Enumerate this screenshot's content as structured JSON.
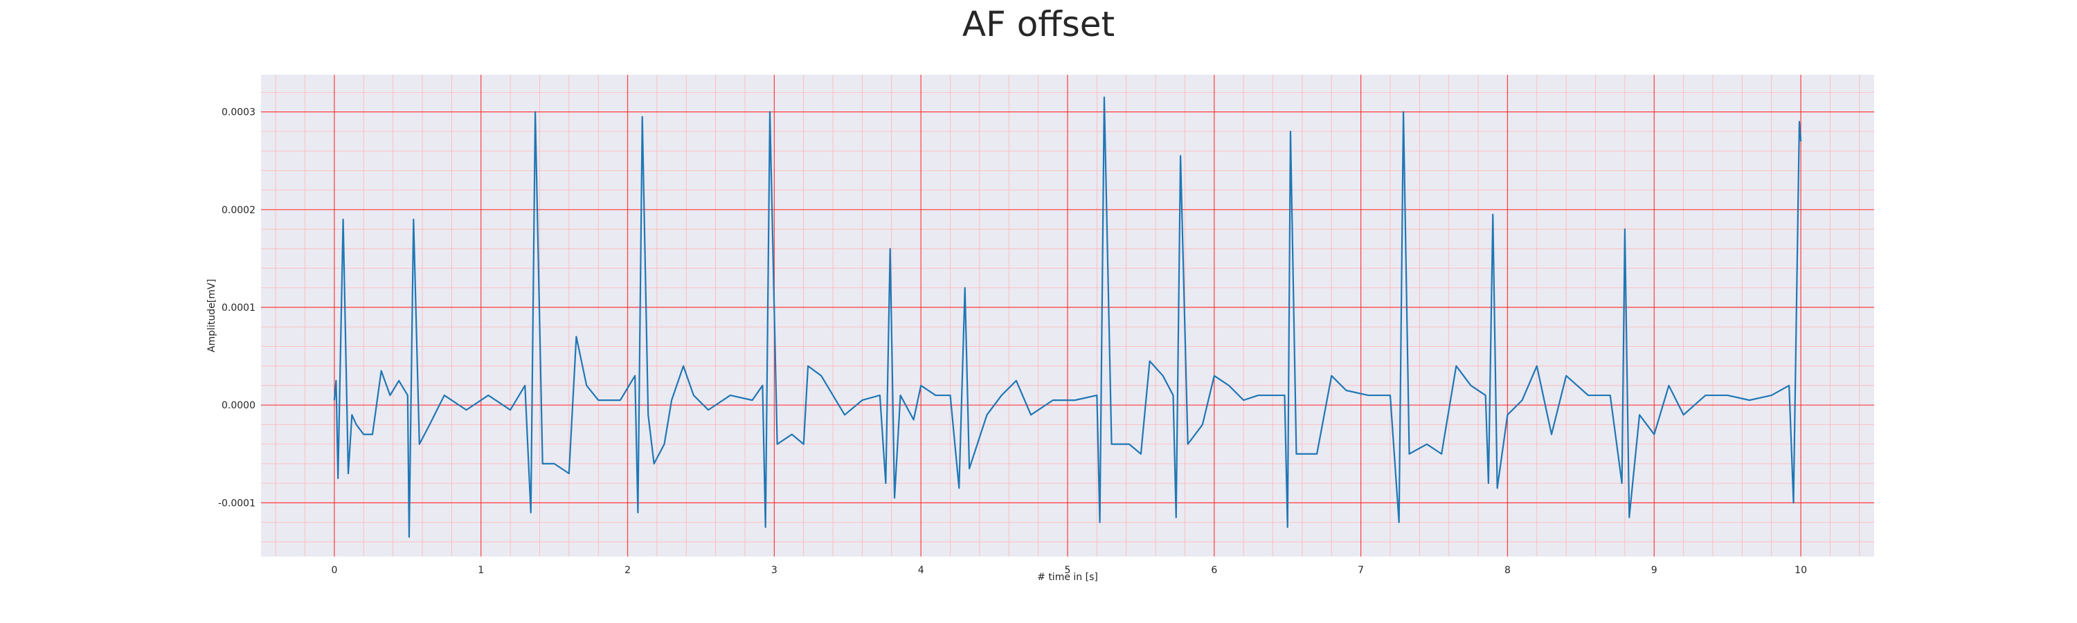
{
  "chart_data": {
    "type": "line",
    "title": "AF offset",
    "xlabel": "# time in [s]",
    "ylabel": "Amplitude[mV]",
    "xlim": [
      -0.5,
      10.5
    ],
    "ylim": [
      -0.000155,
      0.000338
    ],
    "x_ticks": [
      0,
      1,
      2,
      3,
      4,
      5,
      6,
      7,
      8,
      9,
      10
    ],
    "x_tick_labels": [
      "0",
      "1",
      "2",
      "3",
      "4",
      "5",
      "6",
      "7",
      "8",
      "9",
      "10"
    ],
    "y_ticks": [
      -0.0001,
      0,
      0.0001,
      0.0002,
      0.0003
    ],
    "y_tick_labels": [
      "-0.0001",
      "0.0000",
      "0.0001",
      "0.0002",
      "0.0003"
    ],
    "grid": true,
    "grid_color": "#ff3b3b",
    "minor_grid_color": "#ffb6b6",
    "background_color": "#eaeaf2",
    "series": [
      {
        "color": "#1f77b4",
        "points": [
          [
            0.0,
            5e-06
          ],
          [
            0.012,
            2.5e-05
          ],
          [
            0.025,
            -7.5e-05
          ],
          [
            0.06,
            0.00019
          ],
          [
            0.095,
            -7e-05
          ],
          [
            0.12,
            -1e-05
          ],
          [
            0.15,
            -2e-05
          ],
          [
            0.2,
            -3e-05
          ],
          [
            0.26,
            -3e-05
          ],
          [
            0.32,
            3.5e-05
          ],
          [
            0.38,
            1e-05
          ],
          [
            0.44,
            2.5e-05
          ],
          [
            0.5,
            1e-05
          ],
          [
            0.51,
            -0.000135
          ],
          [
            0.54,
            0.00019
          ],
          [
            0.58,
            -4e-05
          ],
          [
            0.65,
            -2e-05
          ],
          [
            0.75,
            1e-05
          ],
          [
            0.9,
            -5e-06
          ],
          [
            1.05,
            1e-05
          ],
          [
            1.2,
            -5e-06
          ],
          [
            1.3,
            2e-05
          ],
          [
            1.34,
            -0.00011
          ],
          [
            1.37,
            0.0003
          ],
          [
            1.42,
            -6e-05
          ],
          [
            1.5,
            -6e-05
          ],
          [
            1.6,
            -7e-05
          ],
          [
            1.65,
            7e-05
          ],
          [
            1.72,
            2e-05
          ],
          [
            1.8,
            5e-06
          ],
          [
            1.95,
            5e-06
          ],
          [
            2.05,
            3e-05
          ],
          [
            2.07,
            -0.00011
          ],
          [
            2.1,
            0.000295
          ],
          [
            2.14,
            -1e-05
          ],
          [
            2.18,
            -6e-05
          ],
          [
            2.25,
            -4e-05
          ],
          [
            2.3,
            5e-06
          ],
          [
            2.38,
            4e-05
          ],
          [
            2.45,
            1e-05
          ],
          [
            2.55,
            -5e-06
          ],
          [
            2.7,
            1e-05
          ],
          [
            2.85,
            5e-06
          ],
          [
            2.92,
            2e-05
          ],
          [
            2.94,
            -0.000125
          ],
          [
            2.97,
            0.0003
          ],
          [
            3.02,
            -4e-05
          ],
          [
            3.12,
            -3e-05
          ],
          [
            3.2,
            -4e-05
          ],
          [
            3.23,
            4e-05
          ],
          [
            3.32,
            3e-05
          ],
          [
            3.4,
            1e-05
          ],
          [
            3.48,
            -1e-05
          ],
          [
            3.6,
            5e-06
          ],
          [
            3.72,
            1e-05
          ],
          [
            3.76,
            -8e-05
          ],
          [
            3.79,
            0.00016
          ],
          [
            3.82,
            -9.5e-05
          ],
          [
            3.86,
            1e-05
          ],
          [
            3.95,
            -1.5e-05
          ],
          [
            4.0,
            2e-05
          ],
          [
            4.1,
            1e-05
          ],
          [
            4.2,
            1e-05
          ],
          [
            4.26,
            -8.5e-05
          ],
          [
            4.3,
            0.00012
          ],
          [
            4.33,
            -6.5e-05
          ],
          [
            4.45,
            -1e-05
          ],
          [
            4.55,
            1e-05
          ],
          [
            4.65,
            2.5e-05
          ],
          [
            4.75,
            -1e-05
          ],
          [
            4.9,
            5e-06
          ],
          [
            5.05,
            5e-06
          ],
          [
            5.2,
            1e-05
          ],
          [
            5.22,
            -0.00012
          ],
          [
            5.25,
            0.000315
          ],
          [
            5.3,
            -4e-05
          ],
          [
            5.42,
            -4e-05
          ],
          [
            5.5,
            -5e-05
          ],
          [
            5.56,
            4.5e-05
          ],
          [
            5.65,
            3e-05
          ],
          [
            5.72,
            1e-05
          ],
          [
            5.74,
            -0.000115
          ],
          [
            5.77,
            0.000255
          ],
          [
            5.82,
            -4e-05
          ],
          [
            5.92,
            -2e-05
          ],
          [
            6.0,
            3e-05
          ],
          [
            6.1,
            2e-05
          ],
          [
            6.2,
            5e-06
          ],
          [
            6.3,
            1e-05
          ],
          [
            6.48,
            1e-05
          ],
          [
            6.5,
            -0.000125
          ],
          [
            6.52,
            0.00028
          ],
          [
            6.56,
            -5e-05
          ],
          [
            6.7,
            -5e-05
          ],
          [
            6.8,
            3e-05
          ],
          [
            6.9,
            1.5e-05
          ],
          [
            7.05,
            1e-05
          ],
          [
            7.2,
            1e-05
          ],
          [
            7.26,
            -0.00012
          ],
          [
            7.29,
            0.0003
          ],
          [
            7.33,
            -5e-05
          ],
          [
            7.45,
            -4e-05
          ],
          [
            7.55,
            -5e-05
          ],
          [
            7.65,
            4e-05
          ],
          [
            7.75,
            2e-05
          ],
          [
            7.85,
            1e-05
          ],
          [
            7.87,
            -8e-05
          ],
          [
            7.9,
            0.000195
          ],
          [
            7.93,
            -8.5e-05
          ],
          [
            8.0,
            -1e-05
          ],
          [
            8.1,
            5e-06
          ],
          [
            8.2,
            4e-05
          ],
          [
            8.3,
            -3e-05
          ],
          [
            8.4,
            3e-05
          ],
          [
            8.55,
            1e-05
          ],
          [
            8.7,
            1e-05
          ],
          [
            8.78,
            -8e-05
          ],
          [
            8.8,
            0.00018
          ],
          [
            8.83,
            -0.000115
          ],
          [
            8.9,
            -1e-05
          ],
          [
            9.0,
            -3e-05
          ],
          [
            9.1,
            2e-05
          ],
          [
            9.2,
            -1e-05
          ],
          [
            9.35,
            1e-05
          ],
          [
            9.5,
            1e-05
          ],
          [
            9.65,
            5e-06
          ],
          [
            9.8,
            1e-05
          ],
          [
            9.92,
            2e-05
          ],
          [
            9.95,
            -0.0001
          ],
          [
            9.99,
            0.00029
          ],
          [
            10.0,
            0.00027
          ]
        ]
      }
    ]
  }
}
